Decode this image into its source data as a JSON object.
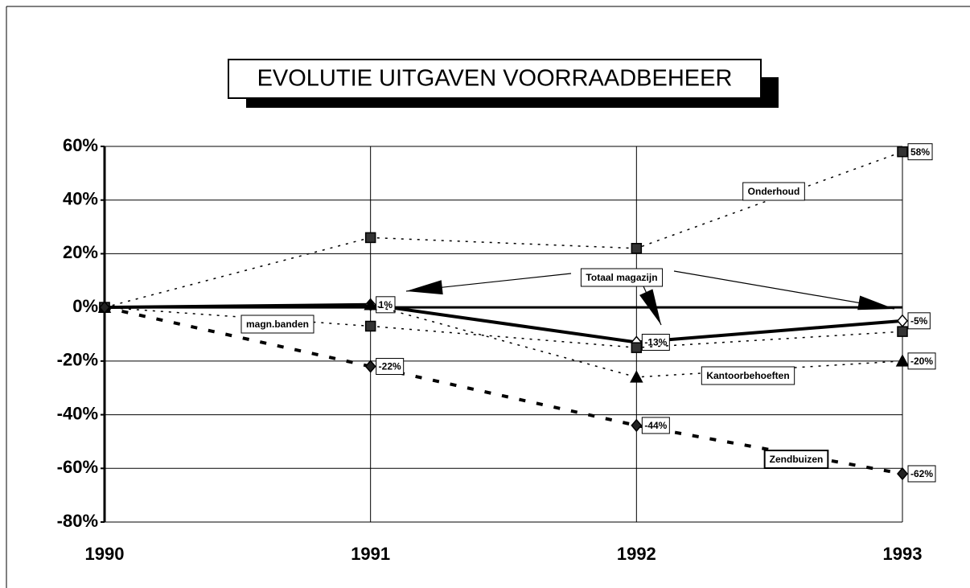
{
  "chart_data": {
    "type": "line",
    "title": "EVOLUTIE UITGAVEN VOORRAADBEHEER",
    "categories": [
      "1990",
      "1991",
      "1992",
      "1993"
    ],
    "series": [
      {
        "name": "Onderhoud",
        "color": "#000000",
        "values": [
          0,
          26,
          22,
          58
        ],
        "value_labels": [
          null,
          null,
          null,
          "58%"
        ]
      },
      {
        "name": "Totaal magazijn",
        "color": "#000000",
        "values": [
          0,
          1,
          -13,
          -5
        ],
        "value_labels": [
          null,
          "1%",
          "-13%",
          "-5%"
        ]
      },
      {
        "name": "magn.banden",
        "color": "#000000",
        "values": [
          0,
          -7,
          -15,
          -9
        ],
        "value_labels": [
          null,
          null,
          null,
          null
        ]
      },
      {
        "name": "Kantoorbehoeften",
        "color": "#000000",
        "values": [
          0,
          1,
          -26,
          -20
        ],
        "value_labels": [
          null,
          null,
          null,
          "-20%"
        ]
      },
      {
        "name": "Zendbuizen",
        "color": "#000000",
        "values": [
          0,
          -22,
          -44,
          -62
        ],
        "value_labels": [
          null,
          "-22%",
          "-44%",
          "-62%"
        ]
      }
    ],
    "ylim": [
      -80,
      60
    ],
    "yticks": [
      {
        "value": -80,
        "label": "-80%"
      },
      {
        "value": -60,
        "label": "-60%"
      },
      {
        "value": -40,
        "label": "-40%"
      },
      {
        "value": -20,
        "label": "-20%"
      },
      {
        "value": 0,
        "label": "0%"
      },
      {
        "value": 20,
        "label": "20%"
      },
      {
        "value": 40,
        "label": "40%"
      },
      {
        "value": 60,
        "label": "60%"
      }
    ],
    "grid": true
  }
}
